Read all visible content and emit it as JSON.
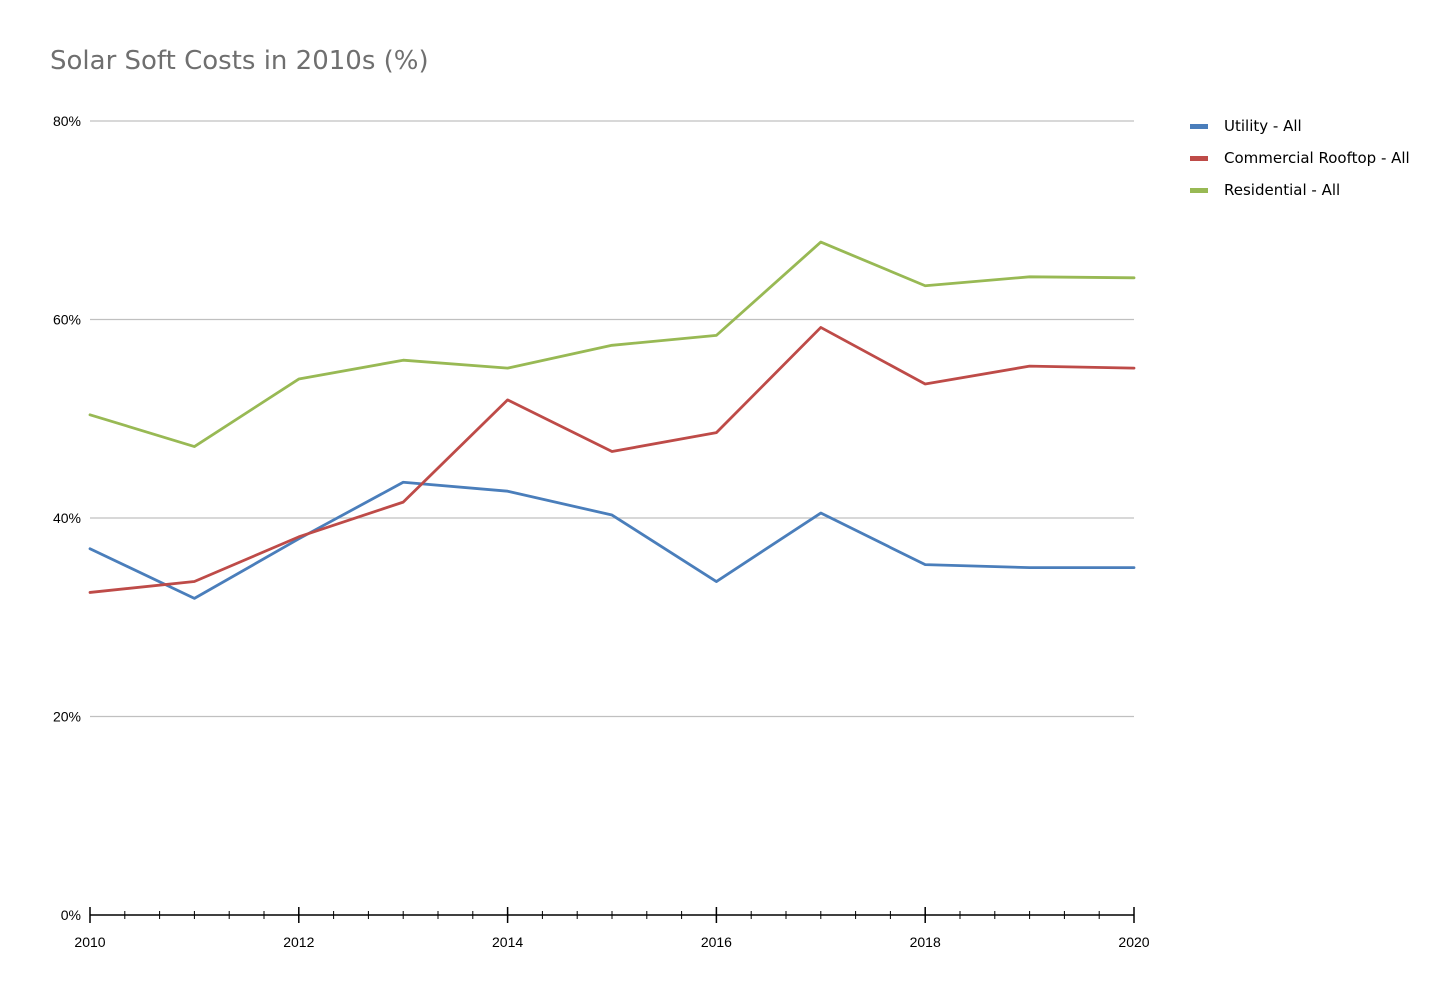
{
  "chart_data": {
    "type": "line",
    "title": "Solar Soft Costs in 2010s (%)",
    "xlabel": "",
    "ylabel": "",
    "x": [
      2010,
      2011,
      2012,
      2013,
      2014,
      2015,
      2016,
      2017,
      2018,
      2019,
      2020
    ],
    "x_tick_labels": [
      "2010",
      "2012",
      "2014",
      "2016",
      "2018",
      "2020"
    ],
    "y_tick_labels": [
      "0%",
      "20%",
      "40%",
      "60%",
      "80%"
    ],
    "ylim": [
      0,
      80
    ],
    "xlim": [
      2010,
      2020
    ],
    "grid": "horizontal",
    "legend_position": "right",
    "series": [
      {
        "name": "Utility - All",
        "color": "#4a7ebb",
        "values": [
          36.9,
          31.9,
          37.9,
          43.6,
          42.7,
          40.3,
          33.6,
          40.5,
          35.3,
          35.0,
          35.0
        ]
      },
      {
        "name": "Commercial Rooftop - All",
        "color": "#be4b48",
        "values": [
          32.5,
          33.6,
          38.1,
          41.6,
          51.9,
          46.7,
          48.6,
          59.2,
          53.5,
          55.3,
          55.1
        ]
      },
      {
        "name": "Residential - All",
        "color": "#98b954",
        "values": [
          50.4,
          47.2,
          54.0,
          55.9,
          55.1,
          57.4,
          58.4,
          67.8,
          63.4,
          64.3,
          64.2
        ]
      }
    ]
  }
}
